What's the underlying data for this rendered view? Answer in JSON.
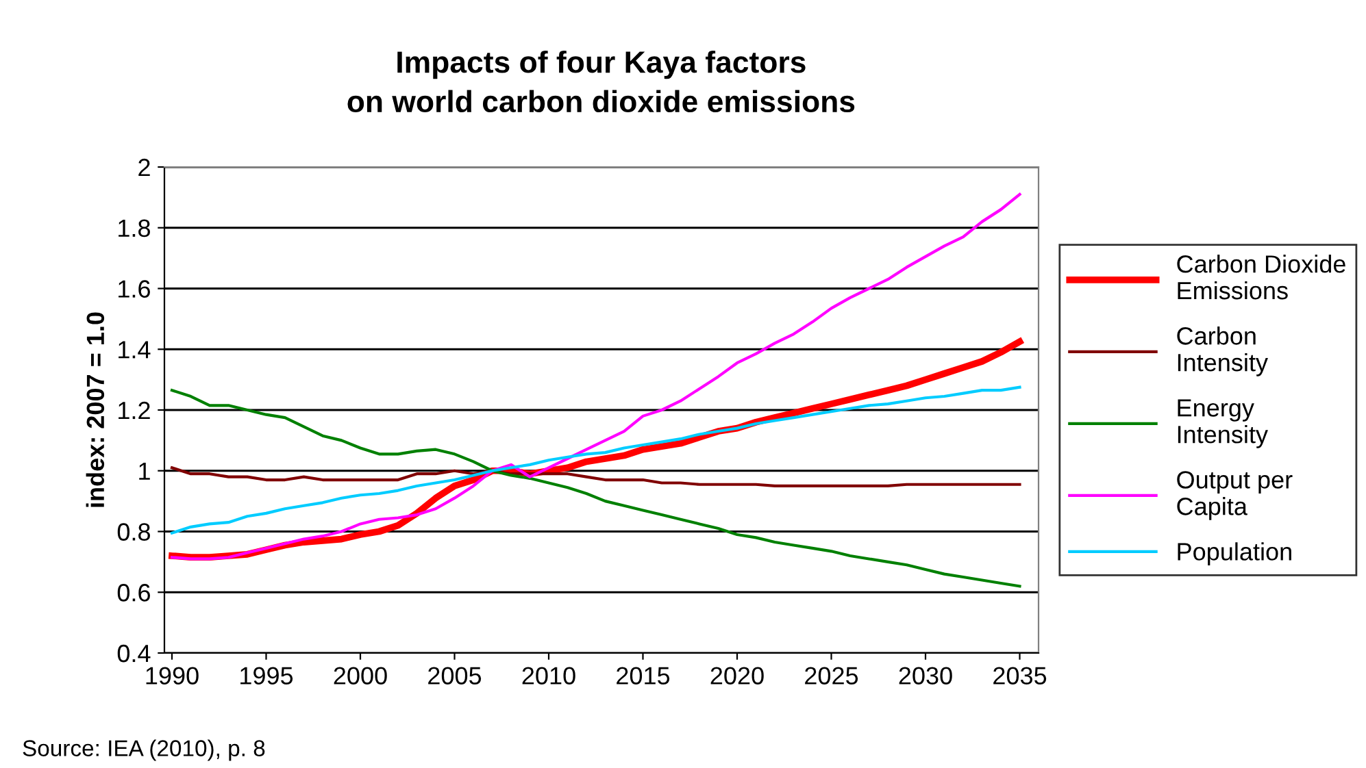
{
  "chart_data": {
    "type": "line",
    "title": "Impacts of four Kaya factors\non world carbon dioxide emissions",
    "ylabel": "index: 2007 = 1.0",
    "x": [
      1990,
      1991,
      1992,
      1993,
      1994,
      1995,
      1996,
      1997,
      1998,
      1999,
      2000,
      2001,
      2002,
      2003,
      2004,
      2005,
      2006,
      2007,
      2008,
      2009,
      2010,
      2011,
      2012,
      2013,
      2014,
      2015,
      2016,
      2017,
      2018,
      2019,
      2020,
      2021,
      2022,
      2023,
      2024,
      2025,
      2026,
      2027,
      2028,
      2029,
      2030,
      2031,
      2032,
      2033,
      2034,
      2035
    ],
    "series": [
      {
        "name": "Carbon Dioxide\nEmissions",
        "color": "#ff0000",
        "values": [
          0.72,
          0.715,
          0.715,
          0.72,
          0.725,
          0.74,
          0.755,
          0.765,
          0.77,
          0.775,
          0.79,
          0.8,
          0.82,
          0.86,
          0.91,
          0.95,
          0.97,
          1.0,
          1.0,
          0.99,
          1.0,
          1.01,
          1.03,
          1.04,
          1.05,
          1.07,
          1.08,
          1.09,
          1.11,
          1.13,
          1.14,
          1.16,
          1.175,
          1.19,
          1.205,
          1.22,
          1.235,
          1.25,
          1.265,
          1.28,
          1.3,
          1.32,
          1.34,
          1.36,
          1.39,
          1.425
        ]
      },
      {
        "name": "Carbon\nIntensity",
        "color": "#800000",
        "values": [
          1.01,
          0.99,
          0.99,
          0.98,
          0.98,
          0.97,
          0.97,
          0.98,
          0.97,
          0.97,
          0.97,
          0.97,
          0.97,
          0.99,
          0.99,
          1.0,
          0.99,
          1.0,
          0.99,
          0.99,
          0.99,
          0.99,
          0.98,
          0.97,
          0.97,
          0.97,
          0.96,
          0.96,
          0.955,
          0.955,
          0.955,
          0.955,
          0.95,
          0.95,
          0.95,
          0.95,
          0.95,
          0.95,
          0.95,
          0.955,
          0.955,
          0.955,
          0.955,
          0.955,
          0.955,
          0.955
        ]
      },
      {
        "name": "Energy\nIntensity",
        "color": "#008000",
        "values": [
          1.265,
          1.245,
          1.215,
          1.215,
          1.2,
          1.185,
          1.175,
          1.145,
          1.115,
          1.1,
          1.075,
          1.055,
          1.055,
          1.065,
          1.07,
          1.055,
          1.03,
          1.0,
          0.985,
          0.975,
          0.96,
          0.945,
          0.925,
          0.9,
          0.885,
          0.87,
          0.855,
          0.84,
          0.825,
          0.81,
          0.79,
          0.78,
          0.765,
          0.755,
          0.745,
          0.735,
          0.72,
          0.71,
          0.7,
          0.69,
          0.675,
          0.66,
          0.65,
          0.64,
          0.63,
          0.62
        ]
      },
      {
        "name": "Output per\nCapita",
        "color": "#ff00ff",
        "values": [
          0.715,
          0.71,
          0.71,
          0.715,
          0.73,
          0.745,
          0.76,
          0.775,
          0.785,
          0.8,
          0.825,
          0.84,
          0.845,
          0.855,
          0.875,
          0.91,
          0.95,
          1.0,
          1.02,
          0.98,
          1.01,
          1.04,
          1.07,
          1.1,
          1.13,
          1.18,
          1.2,
          1.23,
          1.27,
          1.31,
          1.355,
          1.385,
          1.42,
          1.45,
          1.49,
          1.535,
          1.57,
          1.6,
          1.63,
          1.67,
          1.705,
          1.74,
          1.77,
          1.82,
          1.86,
          1.91
        ]
      },
      {
        "name": "Population",
        "color": "#00ccff",
        "values": [
          0.795,
          0.815,
          0.825,
          0.83,
          0.85,
          0.86,
          0.875,
          0.885,
          0.895,
          0.91,
          0.92,
          0.925,
          0.935,
          0.95,
          0.96,
          0.97,
          0.985,
          1.0,
          1.01,
          1.02,
          1.035,
          1.045,
          1.055,
          1.06,
          1.075,
          1.085,
          1.095,
          1.105,
          1.12,
          1.13,
          1.14,
          1.155,
          1.165,
          1.175,
          1.185,
          1.195,
          1.205,
          1.215,
          1.22,
          1.23,
          1.24,
          1.245,
          1.255,
          1.265,
          1.265,
          1.275
        ]
      }
    ],
    "xlim": [
      1989.6,
      2036
    ],
    "xticks": [
      1990,
      1995,
      2000,
      2005,
      2010,
      2015,
      2020,
      2025,
      2030,
      2035
    ],
    "ylim": [
      0.4,
      2
    ],
    "yticks": [
      0.4,
      0.6,
      0.8,
      1,
      1.2,
      1.4,
      1.6,
      1.8,
      2
    ],
    "grid": "y",
    "legend": "right",
    "marker": "none",
    "line_style": "solid",
    "annotations": [
      "Source: IEA (2010), p. 8"
    ]
  }
}
